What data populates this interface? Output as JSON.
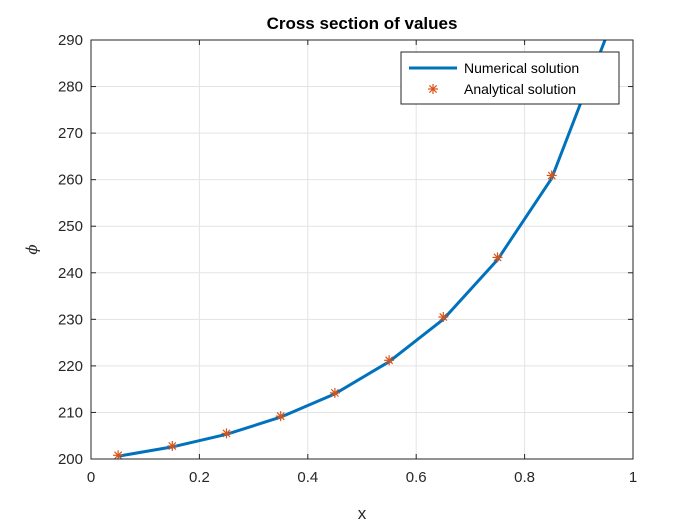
{
  "chart_data": {
    "type": "line",
    "title": "Cross section of values",
    "xlabel": "x",
    "ylabel": "ϕ",
    "xlim": [
      0,
      1
    ],
    "ylim": [
      200,
      290
    ],
    "xticks": [
      0,
      0.2,
      0.4,
      0.6,
      0.8,
      1
    ],
    "xtick_labels": [
      "0",
      "0.2",
      "0.4",
      "0.6",
      "0.8",
      "1"
    ],
    "yticks": [
      200,
      210,
      220,
      230,
      240,
      250,
      260,
      270,
      280,
      290
    ],
    "ytick_labels": [
      "200",
      "210",
      "220",
      "230",
      "240",
      "250",
      "260",
      "270",
      "280",
      "290"
    ],
    "grid": true,
    "legend_position": "top-right",
    "series": [
      {
        "name": "Numerical solution",
        "style": "line",
        "color": "#0072BD",
        "x": [
          0.05,
          0.15,
          0.25,
          0.35,
          0.45,
          0.55,
          0.65,
          0.75,
          0.85,
          0.95
        ],
        "y": [
          200.6,
          202.6,
          205.3,
          209.0,
          214.0,
          220.9,
          230.0,
          242.8,
          260.3,
          290.5
        ]
      },
      {
        "name": "Analytical solution",
        "style": "marker",
        "marker": "asterisk",
        "color": "#D95319",
        "x": [
          0.05,
          0.15,
          0.25,
          0.35,
          0.45,
          0.55,
          0.65,
          0.75,
          0.85
        ],
        "y": [
          200.8,
          202.8,
          205.5,
          209.2,
          214.2,
          221.2,
          230.5,
          243.3,
          260.9
        ]
      }
    ]
  }
}
